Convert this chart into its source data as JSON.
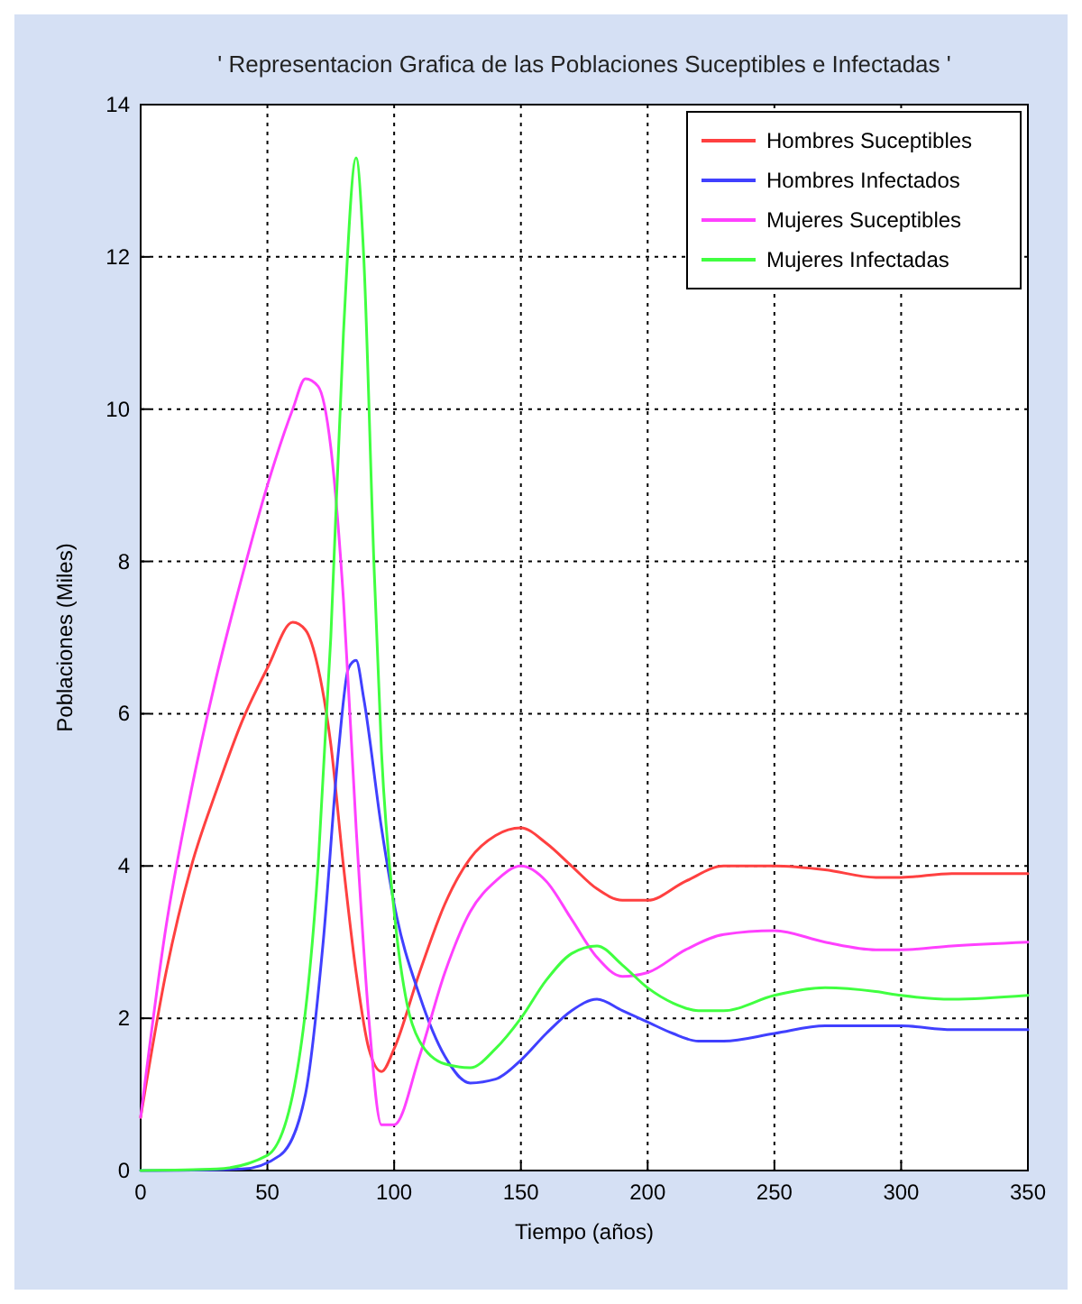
{
  "chart_data": {
    "type": "line",
    "title": "' Representacion Grafica de las Poblaciones Suceptibles e Infectadas '",
    "xlabel": "Tiempo (años)",
    "ylabel": "Poblaciones (Miles)",
    "xlim": [
      0,
      350
    ],
    "ylim": [
      0,
      14
    ],
    "xticks": [
      0,
      50,
      100,
      150,
      200,
      250,
      300,
      350
    ],
    "yticks": [
      0,
      2,
      4,
      6,
      8,
      10,
      12,
      14
    ],
    "grid": true,
    "legend": "top right",
    "marker": "none",
    "line_style": "solid",
    "series": [
      {
        "name": "Hombres Suceptibles",
        "color": "#ff4040",
        "x": [
          0,
          10,
          20,
          30,
          40,
          50,
          60,
          65,
          70,
          75,
          80,
          85,
          90,
          95,
          100,
          110,
          120,
          130,
          140,
          150,
          160,
          170,
          180,
          190,
          200,
          215,
          230,
          250,
          270,
          290,
          300,
          320,
          350
        ],
        "values": [
          0.7,
          2.6,
          4.0,
          5.0,
          5.9,
          6.6,
          7.2,
          7.1,
          6.6,
          5.6,
          4.0,
          2.6,
          1.6,
          1.3,
          1.6,
          2.6,
          3.5,
          4.1,
          4.4,
          4.5,
          4.3,
          4.0,
          3.7,
          3.55,
          3.55,
          3.8,
          4.0,
          4.0,
          3.95,
          3.85,
          3.85,
          3.9,
          3.9
        ]
      },
      {
        "name": "Hombres Infectados",
        "color": "#4040ff",
        "x": [
          0,
          40,
          55,
          65,
          72,
          78,
          82,
          85,
          88,
          95,
          100,
          110,
          120,
          130,
          140,
          150,
          160,
          170,
          180,
          190,
          200,
          210,
          220,
          230,
          250,
          270,
          290,
          300,
          320,
          350
        ],
        "values": [
          0,
          0.02,
          0.2,
          1.0,
          3.0,
          5.5,
          6.6,
          6.7,
          6.2,
          4.5,
          3.5,
          2.3,
          1.5,
          1.15,
          1.2,
          1.45,
          1.8,
          2.1,
          2.25,
          2.1,
          1.95,
          1.8,
          1.7,
          1.7,
          1.8,
          1.9,
          1.9,
          1.9,
          1.85,
          1.85
        ]
      },
      {
        "name": "Mujeres Suceptibles",
        "color": "#ff40ff",
        "x": [
          0,
          10,
          20,
          30,
          40,
          50,
          60,
          65,
          70,
          75,
          80,
          85,
          90,
          95,
          100,
          110,
          120,
          130,
          140,
          150,
          160,
          170,
          180,
          190,
          200,
          215,
          230,
          250,
          270,
          290,
          300,
          320,
          350
        ],
        "values": [
          0.7,
          3.2,
          5.0,
          6.5,
          7.8,
          9.0,
          10.0,
          10.4,
          10.3,
          9.5,
          7.5,
          4.5,
          2.0,
          0.6,
          0.6,
          1.5,
          2.6,
          3.4,
          3.8,
          4.0,
          3.8,
          3.3,
          2.8,
          2.55,
          2.6,
          2.9,
          3.1,
          3.15,
          3.0,
          2.9,
          2.9,
          2.95,
          3.0
        ]
      },
      {
        "name": "Mujeres Infectadas",
        "color": "#40ff40",
        "x": [
          0,
          30,
          50,
          60,
          70,
          75,
          80,
          85,
          88,
          92,
          95,
          100,
          105,
          110,
          120,
          130,
          140,
          150,
          160,
          170,
          180,
          190,
          200,
          210,
          220,
          230,
          250,
          270,
          290,
          300,
          320,
          350
        ],
        "values": [
          0,
          0.02,
          0.2,
          1.0,
          4.0,
          7.0,
          11.0,
          13.3,
          12.0,
          8.0,
          5.5,
          3.4,
          2.2,
          1.7,
          1.4,
          1.35,
          1.6,
          2.0,
          2.5,
          2.85,
          2.95,
          2.7,
          2.4,
          2.2,
          2.1,
          2.1,
          2.3,
          2.4,
          2.35,
          2.3,
          2.25,
          2.3
        ]
      }
    ]
  }
}
